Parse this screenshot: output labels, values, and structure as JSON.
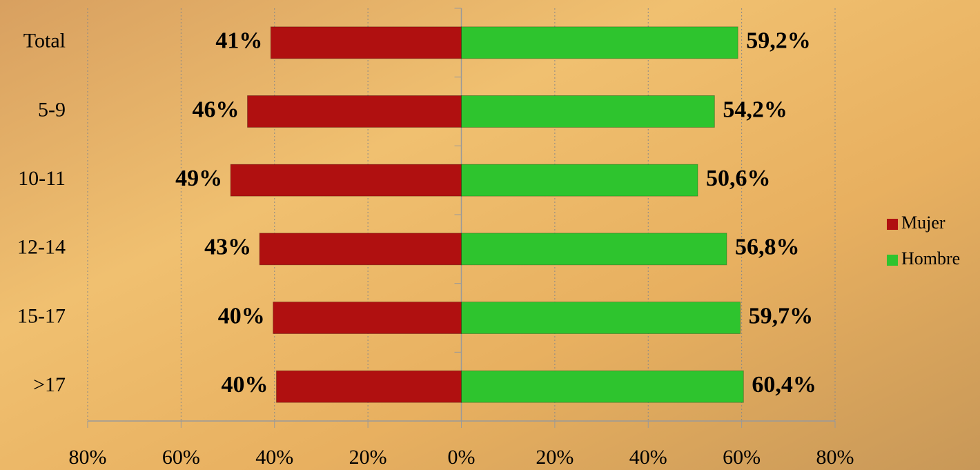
{
  "chart_data": {
    "type": "butterfly-bar",
    "categories": [
      "Total",
      "5-9",
      "10-11",
      "12-14",
      "15-17",
      ">17"
    ],
    "series": [
      {
        "name": "Mujer",
        "color": "#b01010",
        "values": [
          -40.8,
          -45.8,
          -49.4,
          -43.2,
          -40.3,
          -39.6
        ],
        "value_labels": [
          "41%",
          "46%",
          "49%",
          "43%",
          "40%",
          "40%"
        ]
      },
      {
        "name": "Hombre",
        "color": "#2ec42e",
        "values": [
          59.2,
          54.2,
          50.6,
          56.8,
          59.7,
          60.4
        ],
        "value_labels": [
          "59,2%",
          "54,2%",
          "50,6%",
          "56,8%",
          "59,7%",
          "60,4%"
        ]
      }
    ],
    "xlim": [
      -80,
      80
    ],
    "xticks": [
      {
        "value": -80,
        "label": "80%"
      },
      {
        "value": -60,
        "label": "60%"
      },
      {
        "value": -40,
        "label": "40%"
      },
      {
        "value": -20,
        "label": "20%"
      },
      {
        "value": 0,
        "label": "0%"
      },
      {
        "value": 20,
        "label": "20%"
      },
      {
        "value": 40,
        "label": "40%"
      },
      {
        "value": 60,
        "label": "60%"
      },
      {
        "value": 80,
        "label": "80%"
      }
    ],
    "grid": true,
    "legend": "right"
  }
}
